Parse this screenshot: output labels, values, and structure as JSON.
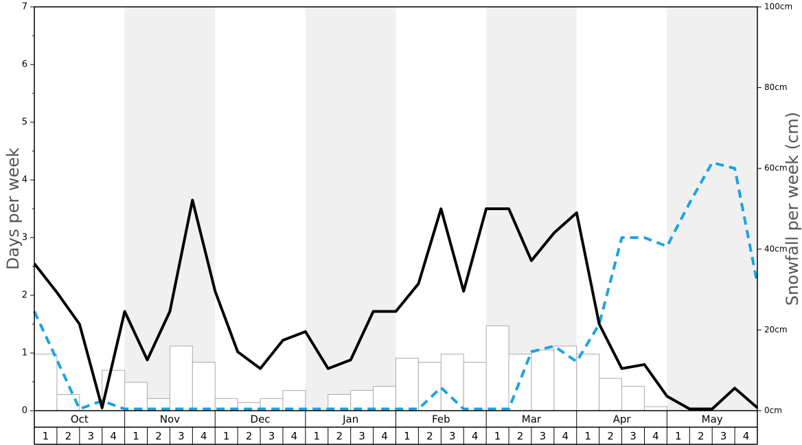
{
  "chart_data": {
    "type": "bar+line",
    "ylabel": "Days per week",
    "y2label": "Snowfall per week (cm)",
    "ylim": [
      0,
      7
    ],
    "y2lim": [
      0,
      100
    ],
    "yticks": [
      "0",
      "1",
      "2",
      "3",
      "4",
      "5",
      "6",
      "7"
    ],
    "y2ticks": [
      "0cm",
      "20cm",
      "40cm",
      "60cm",
      "80cm",
      "100cm"
    ],
    "months": [
      "Oct",
      "Nov",
      "Dec",
      "Jan",
      "Feb",
      "Mar",
      "Apr",
      "May"
    ],
    "week_labels": [
      "1",
      "2",
      "3",
      "4"
    ],
    "shaded_months": [
      "Nov",
      "Jan",
      "Mar",
      "May"
    ],
    "snowfall_bars_cm": [
      14,
      4,
      0,
      10,
      7,
      3,
      16,
      12,
      3,
      2,
      3,
      5,
      0,
      4,
      5,
      6,
      13,
      12,
      14,
      12,
      21,
      14,
      15,
      16,
      14,
      8,
      6,
      1,
      0,
      0,
      0,
      0
    ],
    "black_line_days": [
      2.55,
      2.05,
      1.5,
      0.05,
      1.72,
      0.88,
      1.72,
      3.65,
      2.07,
      1.02,
      0.73,
      1.22,
      1.37,
      0.73,
      0.88,
      1.72,
      1.72,
      2.2,
      3.5,
      2.07,
      3.5,
      3.5,
      2.6,
      3.08,
      3.43,
      1.5,
      0.73,
      0.8,
      0.25,
      0.03,
      0.03,
      0.39,
      0.05
    ],
    "blue_dashed_days": [
      1.72,
      0.88,
      0.03,
      0.17,
      0.03,
      0.03,
      0.03,
      0.03,
      0.03,
      0.03,
      0.03,
      0.03,
      0.03,
      0.03,
      0.03,
      0.03,
      0.03,
      0.03,
      0.4,
      0.03,
      0.03,
      0.03,
      1.02,
      1.12,
      0.85,
      1.5,
      3.0,
      3.0,
      2.85,
      3.6,
      4.3,
      4.2,
      2.2
    ]
  }
}
